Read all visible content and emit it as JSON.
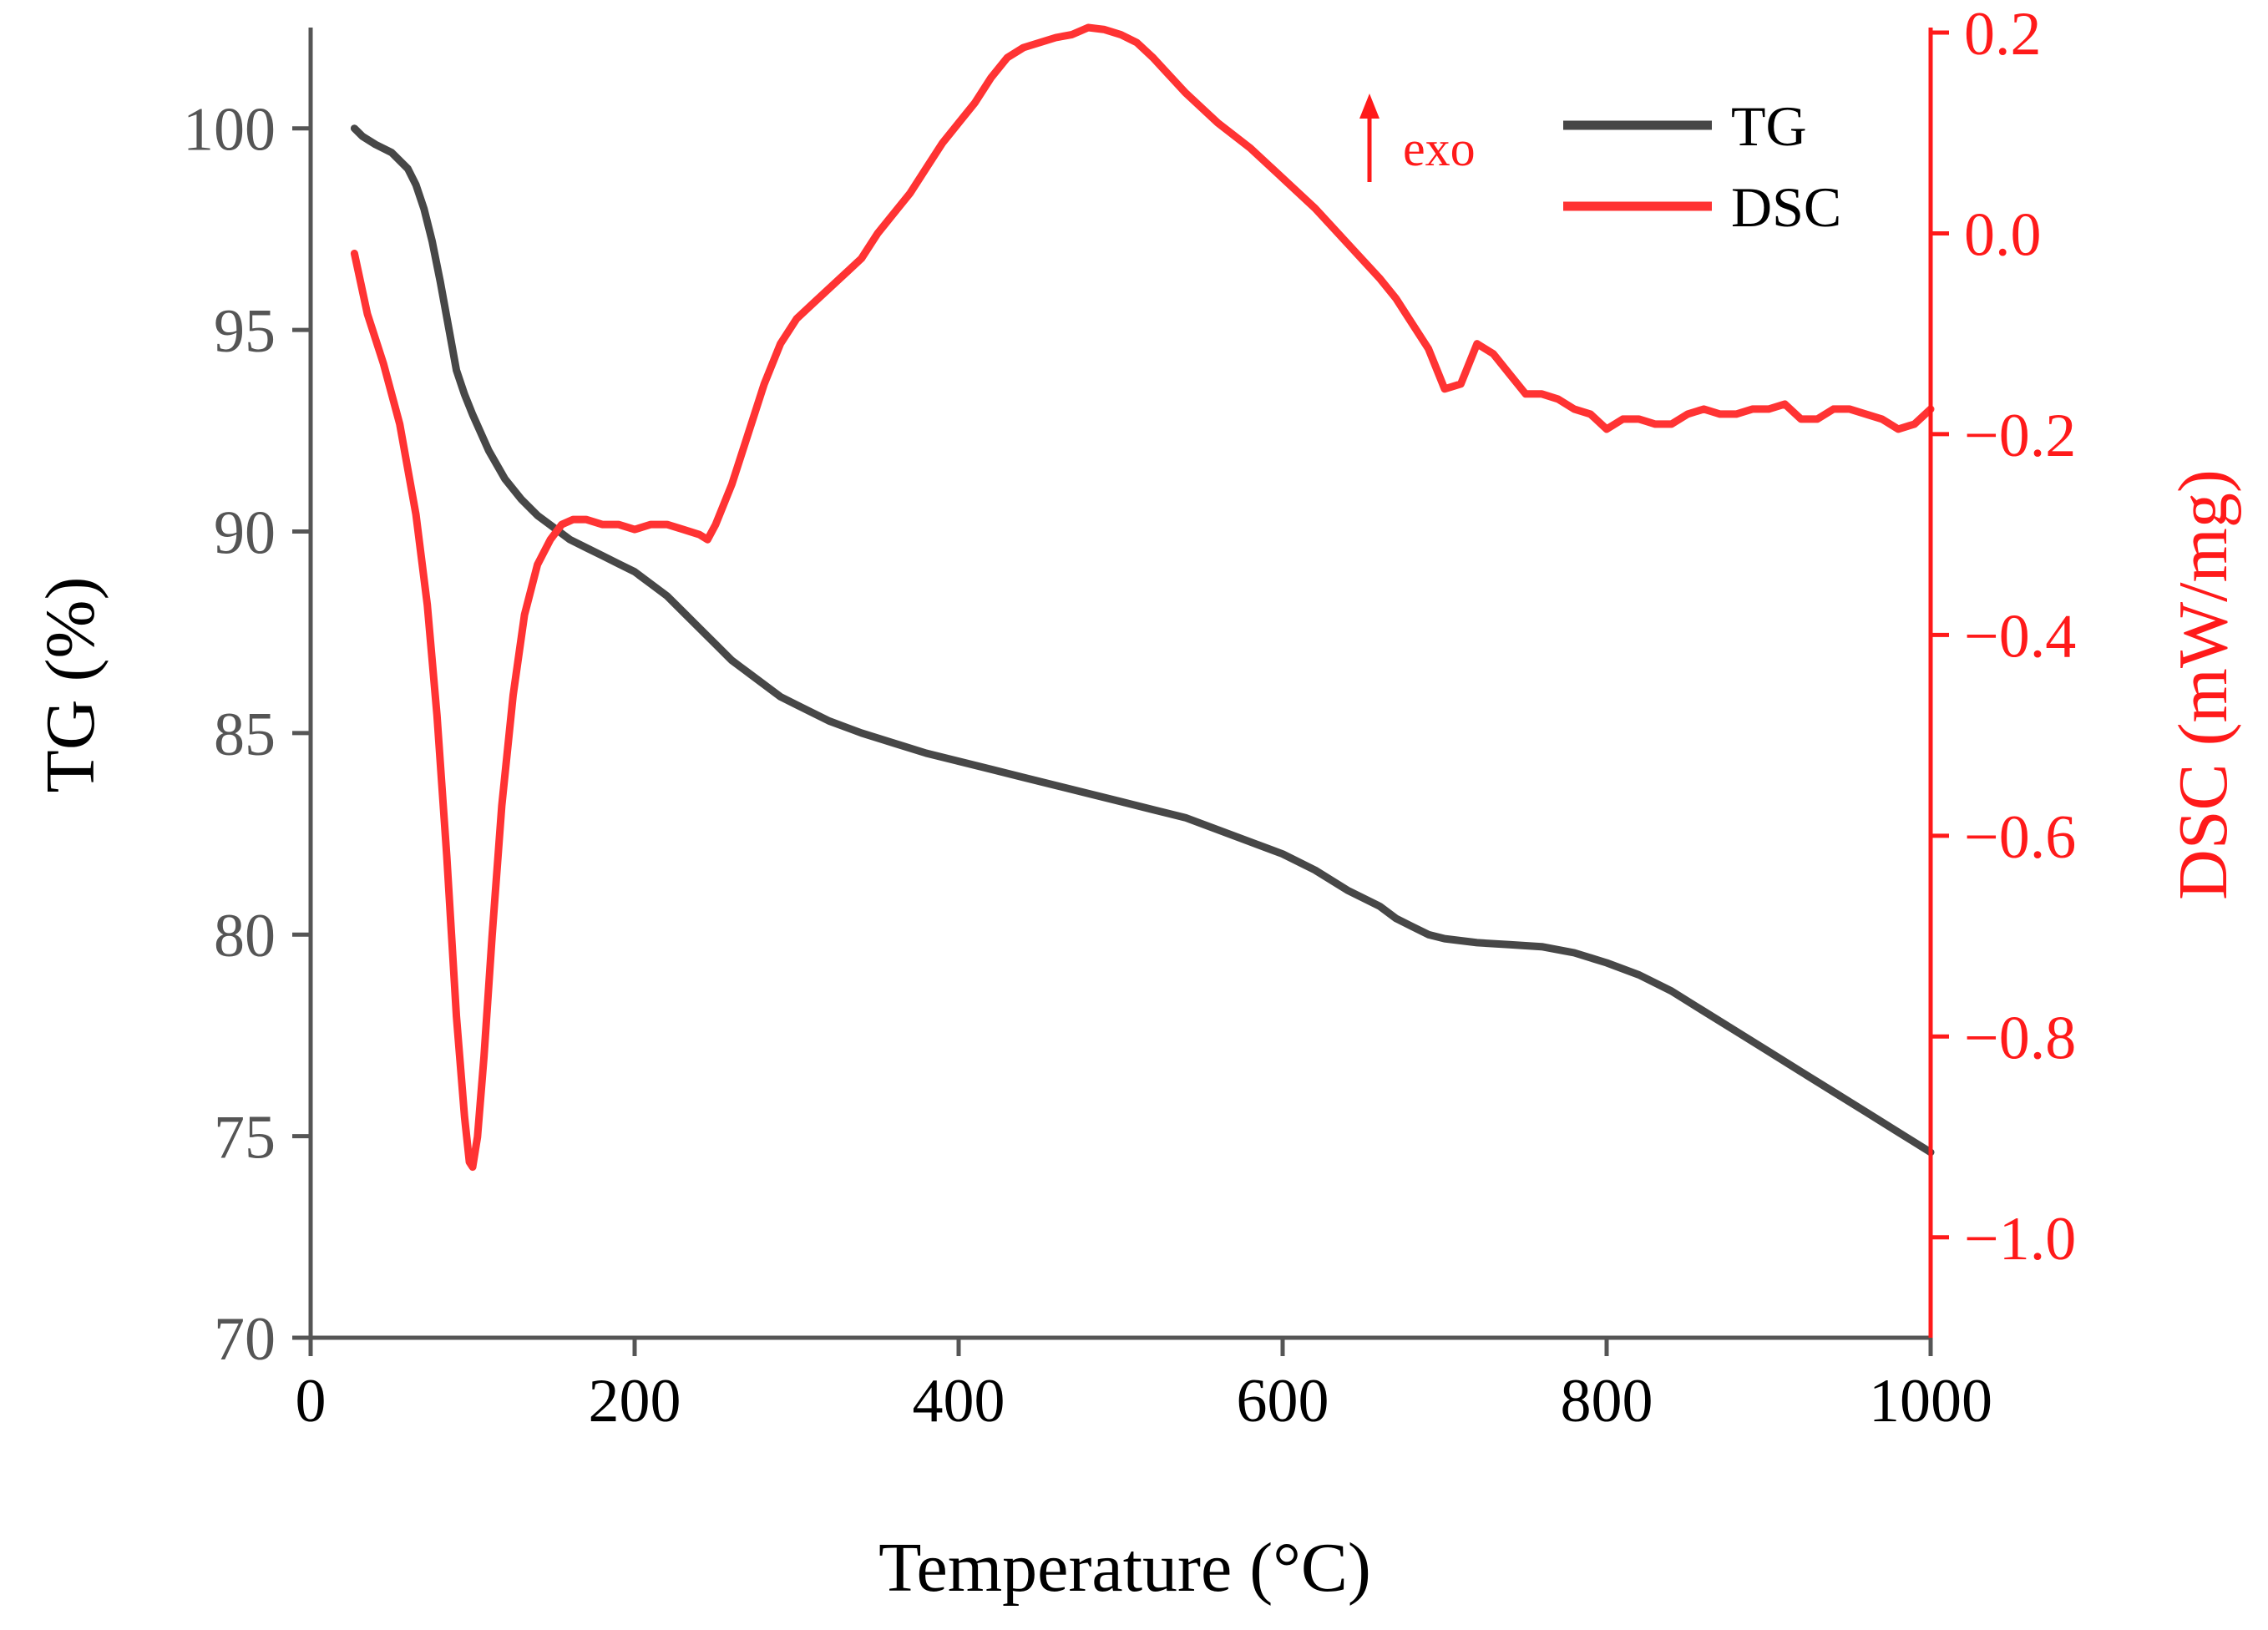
{
  "chart_data": {
    "type": "line",
    "xlabel": "Temperature (°C)",
    "ylabel_left": "TG (%)",
    "ylabel_right": "DSC (mW/mg)",
    "xlim": [
      0,
      1000
    ],
    "ylim_left": [
      70,
      102.5
    ],
    "ylim_right": [
      -1.1,
      0.205
    ],
    "xticks": [
      0,
      200,
      400,
      600,
      800,
      1000
    ],
    "yticks_left": [
      70,
      75,
      80,
      85,
      90,
      95,
      100
    ],
    "yticks_right": [
      -1.0,
      -0.8,
      -0.6,
      -0.4,
      -0.2,
      0.0,
      0.2
    ],
    "ytick_labels_right": [
      "−1.0",
      "−0.8",
      "−0.6",
      "−0.4",
      "−0.2",
      "0.0",
      "0.2"
    ],
    "legend_position": "top-right",
    "annotation": "exo",
    "colors": {
      "TG": "#474747",
      "DSC": "#ff3333",
      "axis": "#555555",
      "right_axis": "#ff1a1a"
    },
    "series": [
      {
        "name": "TG",
        "axis": "left",
        "x": [
          27,
          32,
          40,
          50,
          60,
          65,
          70,
          75,
          80,
          85,
          90,
          95,
          100,
          110,
          120,
          130,
          140,
          150,
          160,
          170,
          180,
          190,
          200,
          210,
          220,
          230,
          240,
          250,
          260,
          270,
          280,
          290,
          300,
          320,
          340,
          360,
          380,
          400,
          420,
          440,
          460,
          480,
          500,
          520,
          540,
          560,
          580,
          600,
          620,
          640,
          660,
          670,
          680,
          690,
          700,
          720,
          740,
          760,
          780,
          800,
          820,
          840,
          860,
          880,
          900,
          920,
          940,
          960,
          980,
          1000
        ],
        "y": [
          100.0,
          99.8,
          99.6,
          99.4,
          99.0,
          98.6,
          98.0,
          97.2,
          96.2,
          95.1,
          94.0,
          93.4,
          92.9,
          92.0,
          91.3,
          90.8,
          90.4,
          90.1,
          89.8,
          89.6,
          89.4,
          89.2,
          89.0,
          88.7,
          88.4,
          88.0,
          87.6,
          87.2,
          86.8,
          86.5,
          86.2,
          85.9,
          85.7,
          85.3,
          85.0,
          84.75,
          84.5,
          84.3,
          84.1,
          83.9,
          83.7,
          83.5,
          83.3,
          83.1,
          82.9,
          82.6,
          82.3,
          82.0,
          81.6,
          81.1,
          80.7,
          80.4,
          80.2,
          80.0,
          79.9,
          79.8,
          79.75,
          79.7,
          79.55,
          79.3,
          79.0,
          78.6,
          78.1,
          77.6,
          77.1,
          76.6,
          76.1,
          75.6,
          75.1,
          74.6
        ]
      },
      {
        "name": "DSC",
        "axis": "right",
        "x": [
          27,
          35,
          45,
          55,
          65,
          72,
          78,
          84,
          90,
          95,
          98,
          100,
          103,
          107,
          112,
          118,
          125,
          132,
          140,
          148,
          155,
          162,
          170,
          180,
          190,
          200,
          210,
          220,
          230,
          240,
          245,
          250,
          260,
          270,
          280,
          290,
          300,
          310,
          320,
          330,
          340,
          350,
          360,
          370,
          380,
          390,
          400,
          410,
          420,
          430,
          440,
          450,
          460,
          470,
          480,
          490,
          500,
          510,
          520,
          540,
          560,
          580,
          600,
          620,
          640,
          660,
          670,
          680,
          690,
          700,
          710,
          720,
          730,
          740,
          750,
          760,
          770,
          780,
          790,
          800,
          805,
          810,
          820,
          830,
          840,
          850,
          860,
          870,
          880,
          890,
          900,
          910,
          920,
          930,
          940,
          950,
          960,
          970,
          980,
          990,
          1000
        ],
        "y": [
          -0.02,
          -0.08,
          -0.13,
          -0.19,
          -0.28,
          -0.37,
          -0.48,
          -0.62,
          -0.78,
          -0.88,
          -0.925,
          -0.93,
          -0.9,
          -0.82,
          -0.7,
          -0.57,
          -0.46,
          -0.38,
          -0.33,
          -0.305,
          -0.29,
          -0.285,
          -0.285,
          -0.29,
          -0.29,
          -0.295,
          -0.29,
          -0.29,
          -0.295,
          -0.3,
          -0.305,
          -0.29,
          -0.25,
          -0.2,
          -0.15,
          -0.11,
          -0.085,
          -0.07,
          -0.055,
          -0.04,
          -0.025,
          0.0,
          0.02,
          0.04,
          0.065,
          0.09,
          0.11,
          0.13,
          0.155,
          0.175,
          0.185,
          0.19,
          0.195,
          0.198,
          0.205,
          0.203,
          0.198,
          0.19,
          0.175,
          0.14,
          0.11,
          0.085,
          0.055,
          0.025,
          -0.01,
          -0.045,
          -0.065,
          -0.09,
          -0.115,
          -0.155,
          -0.15,
          -0.11,
          -0.12,
          -0.14,
          -0.16,
          -0.16,
          -0.165,
          -0.175,
          -0.18,
          -0.195,
          -0.19,
          -0.185,
          -0.185,
          -0.19,
          -0.19,
          -0.18,
          -0.175,
          -0.18,
          -0.18,
          -0.175,
          -0.175,
          -0.17,
          -0.185,
          -0.185,
          -0.175,
          -0.175,
          -0.18,
          -0.185,
          -0.195,
          -0.19,
          -0.175
        ]
      }
    ]
  }
}
